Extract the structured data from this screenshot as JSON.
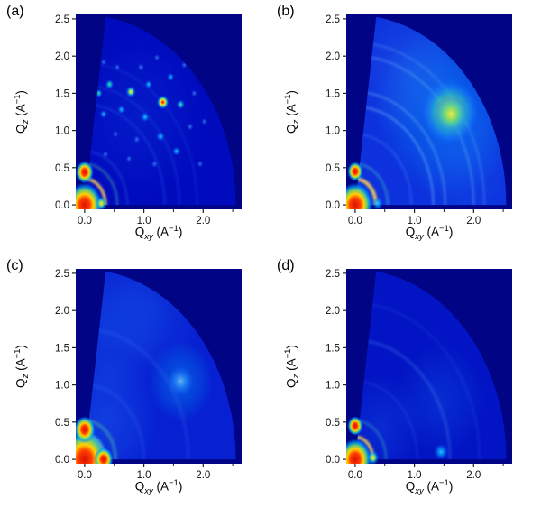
{
  "axes": {
    "q_symbol": "Q",
    "y_sub": "z",
    "x_sub": "xy",
    "unit_open": "(A",
    "unit_sup": "−1",
    "unit_close": ")"
  },
  "chart_data": [
    {
      "type": "heatmap",
      "panel_label": "(a)",
      "description": "GIWAXS quarter-arc detector image: spotty diffraction rings with sharp Bragg spots (crystalline, textured)",
      "colormap": "jet",
      "xlabel": "Qxy (A−1)",
      "ylabel": "Qz (A−1)",
      "xlim": [
        -0.15,
        2.65
      ],
      "ylim": [
        -0.06,
        2.56
      ],
      "xticks": [
        0,
        1,
        2
      ],
      "xtick_labels": [
        "0.0",
        "1.0",
        "2.0"
      ],
      "xminor": [
        0.5,
        1.5,
        2.5
      ],
      "yticks": [
        0,
        0.5,
        1,
        1.5,
        2,
        2.5
      ],
      "ytick_labels": [
        "0.0",
        "0.5",
        "1.0",
        "1.5",
        "2.0",
        "2.5"
      ],
      "background": "#000485",
      "wedge": {
        "radius": 2.55,
        "tilt_deg": 8,
        "color": "#000bbe"
      },
      "glows": [
        {
          "x": 0.9,
          "y": 1.2,
          "r": 1.1,
          "rgb": "30,110,255",
          "a": 0.15
        }
      ],
      "rings": [
        {
          "r": 0.35,
          "color": "#ffd24d",
          "opacity": 0.85,
          "w": 3.5
        },
        {
          "r": 0.55,
          "color": "#59d9a6",
          "opacity": 0.35,
          "w": 3
        },
        {
          "r": 0.72,
          "color": "#3a7bff",
          "opacity": 0.25,
          "w": 2.5
        },
        {
          "r": 1.35,
          "color": "#3a7bff",
          "opacity": 0.22,
          "w": 2.5
        },
        {
          "r": 1.6,
          "color": "#3a7bff",
          "opacity": 0.18,
          "w": 2.5
        },
        {
          "r": 1.9,
          "color": "#3a7bff",
          "opacity": 0.14,
          "w": 2.5
        }
      ],
      "spots": [
        {
          "x": 1.32,
          "y": 1.38,
          "s": 0.1,
          "g": "red"
        },
        {
          "x": 0.78,
          "y": 1.52,
          "s": 0.085,
          "g": "yellow"
        },
        {
          "x": 0.42,
          "y": 1.62,
          "s": 0.07,
          "g": "green"
        },
        {
          "x": 1.02,
          "y": 1.18,
          "s": 0.07,
          "g": "cyan"
        },
        {
          "x": 0.62,
          "y": 1.28,
          "s": 0.06,
          "g": "cyan"
        },
        {
          "x": 1.28,
          "y": 0.92,
          "s": 0.07,
          "g": "cyan"
        },
        {
          "x": 0.88,
          "y": 0.88,
          "s": 0.055,
          "g": "faint"
        },
        {
          "x": 1.55,
          "y": 0.72,
          "s": 0.065,
          "g": "cyan"
        },
        {
          "x": 1.18,
          "y": 0.55,
          "s": 0.055,
          "g": "faint"
        },
        {
          "x": 0.32,
          "y": 1.22,
          "s": 0.06,
          "g": "cyan"
        },
        {
          "x": 0.24,
          "y": 1.5,
          "s": 0.06,
          "g": "green"
        },
        {
          "x": 1.45,
          "y": 1.72,
          "s": 0.06,
          "g": "cyan"
        },
        {
          "x": 0.95,
          "y": 1.85,
          "s": 0.055,
          "g": "faint"
        },
        {
          "x": 1.78,
          "y": 1.05,
          "s": 0.055,
          "g": "faint"
        },
        {
          "x": 1.95,
          "y": 0.55,
          "s": 0.05,
          "g": "faint"
        },
        {
          "x": 0.52,
          "y": 0.95,
          "s": 0.05,
          "g": "faint"
        },
        {
          "x": 0.75,
          "y": 0.62,
          "s": 0.05,
          "g": "faint"
        },
        {
          "x": 0.35,
          "y": 0.68,
          "s": 0.05,
          "g": "faint"
        },
        {
          "x": 1.62,
          "y": 1.35,
          "s": 0.07,
          "g": "green"
        },
        {
          "x": 1.08,
          "y": 1.62,
          "s": 0.06,
          "g": "cyan"
        },
        {
          "x": 2.02,
          "y": 1.12,
          "s": 0.05,
          "g": "faint"
        },
        {
          "x": 0.32,
          "y": 1.92,
          "s": 0.05,
          "g": "faint"
        },
        {
          "x": 1.22,
          "y": 1.98,
          "s": 0.05,
          "g": "faint"
        },
        {
          "x": 1.68,
          "y": 1.88,
          "s": 0.05,
          "g": "faint"
        },
        {
          "x": 0.55,
          "y": 1.85,
          "s": 0.05,
          "g": "faint"
        },
        {
          "x": 1.85,
          "y": 1.5,
          "s": 0.05,
          "g": "faint"
        }
      ],
      "streaks": [],
      "beam": {
        "s": 0.3
      },
      "edge_blobs": [
        {
          "x": 0,
          "y": 0.44,
          "s": 0.15,
          "g": "beam"
        },
        {
          "x": 0.28,
          "y": 0.02,
          "s": 0.1,
          "g": "yellow"
        }
      ]
    },
    {
      "type": "heatmap",
      "panel_label": "(b)",
      "description": "GIWAXS quarter-arc detector image: smooth diffuse rings with broad intense halo centered near (1.6, 1.25)",
      "colormap": "jet",
      "xlabel": "Qxy (A−1)",
      "ylabel": "Qz (A−1)",
      "xlim": [
        -0.15,
        2.65
      ],
      "ylim": [
        -0.06,
        2.56
      ],
      "xticks": [
        0,
        1,
        2
      ],
      "xtick_labels": [
        "0.0",
        "1.0",
        "2.0"
      ],
      "xminor": [
        0.5,
        1.5,
        2.5
      ],
      "yticks": [
        0,
        0.5,
        1,
        1.5,
        2,
        2.5
      ],
      "ytick_labels": [
        "0.0",
        "0.5",
        "1.0",
        "1.5",
        "2.0",
        "2.5"
      ],
      "background": "#000485",
      "wedge": {
        "radius": 2.55,
        "tilt_deg": 8,
        "color": "#0c31dd"
      },
      "glows": [
        {
          "x": 1.55,
          "y": 1.3,
          "r": 1.2,
          "rgb": "0,180,255",
          "a": 0.4
        },
        {
          "x": 0.9,
          "y": 1.8,
          "r": 0.9,
          "rgb": "60,150,255",
          "a": 0.22
        },
        {
          "x": 1.9,
          "y": 0.6,
          "r": 0.9,
          "rgb": "30,130,255",
          "a": 0.2
        }
      ],
      "rings": [
        {
          "r": 0.35,
          "color": "#ffd24d",
          "opacity": 0.9,
          "w": 4
        },
        {
          "r": 0.55,
          "color": "#4fd0c0",
          "opacity": 0.35,
          "w": 3
        },
        {
          "r": 0.95,
          "color": "#5aa0ff",
          "opacity": 0.2,
          "w": 3
        },
        {
          "r": 1.32,
          "color": "#79c4ff",
          "opacity": 0.4,
          "w": 2.5
        },
        {
          "r": 1.52,
          "color": "#79c4ff",
          "opacity": 0.33,
          "w": 2.5
        },
        {
          "r": 2.0,
          "color": "#79c4ff",
          "opacity": 0.3,
          "w": 2.5
        },
        {
          "r": 2.18,
          "color": "#79c4ff",
          "opacity": 0.22,
          "w": 2.5
        }
      ],
      "spots": [
        {
          "x": 1.6,
          "y": 1.25,
          "s": 0.5,
          "g": "blob"
        },
        {
          "x": 1.62,
          "y": 1.22,
          "s": 0.28,
          "g": "blob"
        }
      ],
      "streaks": [],
      "beam": {
        "s": 0.3
      },
      "edge_blobs": [
        {
          "x": 0,
          "y": 0.45,
          "s": 0.13,
          "g": "beam"
        },
        {
          "x": 0.38,
          "y": 0.02,
          "s": 0.09,
          "g": "cyan"
        }
      ]
    },
    {
      "type": "heatmap",
      "panel_label": "(c)",
      "description": "GIWAXS quarter-arc detector image: weak diffuse scattering with soft halo near (1.6, 1.05) and bright beam corner",
      "colormap": "jet",
      "xlabel": "Qxy (A−1)",
      "ylabel": "Qz (A−1)",
      "xlim": [
        -0.15,
        2.65
      ],
      "ylim": [
        -0.06,
        2.56
      ],
      "xticks": [
        0,
        1,
        2
      ],
      "xtick_labels": [
        "0.0",
        "1.0",
        "2.0"
      ],
      "xminor": [
        0.5,
        1.5,
        2.5
      ],
      "yticks": [
        0,
        0.5,
        1,
        1.5,
        2,
        2.5
      ],
      "ytick_labels": [
        "0.0",
        "0.5",
        "1.0",
        "1.5",
        "2.0",
        "2.5"
      ],
      "background": "#000485",
      "wedge": {
        "radius": 2.55,
        "tilt_deg": 8,
        "color": "#0620d2"
      },
      "glows": [
        {
          "x": 0.45,
          "y": 1.8,
          "r": 1.0,
          "rgb": "40,140,255",
          "a": 0.25
        },
        {
          "x": 1.62,
          "y": 1.05,
          "r": 0.55,
          "rgb": "0,190,255",
          "a": 0.35
        },
        {
          "x": 0.35,
          "y": 0.55,
          "r": 0.9,
          "rgb": "40,130,255",
          "a": 0.3
        },
        {
          "x": 1.2,
          "y": 2.0,
          "r": 0.8,
          "rgb": "40,140,255",
          "a": 0.15
        }
      ],
      "rings": [
        {
          "r": 0.32,
          "color": "#ffd24d",
          "opacity": 0.8,
          "w": 4
        },
        {
          "r": 0.52,
          "color": "#59d9a6",
          "opacity": 0.35,
          "w": 4
        },
        {
          "r": 1.0,
          "color": "#4f8fff",
          "opacity": 0.12,
          "w": 4
        },
        {
          "r": 1.75,
          "color": "#4f8fff",
          "opacity": 0.12,
          "w": 5
        }
      ],
      "spots": [
        {
          "x": 1.62,
          "y": 1.05,
          "s": 0.22,
          "g": "soft"
        }
      ],
      "streaks": [],
      "beam": {
        "s": 0.4
      },
      "edge_blobs": [
        {
          "x": 0,
          "y": 0.4,
          "s": 0.18,
          "g": "beam"
        },
        {
          "x": 0.32,
          "y": 0,
          "s": 0.16,
          "g": "beam"
        }
      ]
    },
    {
      "type": "heatmap",
      "panel_label": "(d)",
      "description": "GIWAXS quarter-arc detector image: weak diffuse ring near r=1.6 with sharp vertical streak at Qxy≈1.45 near Qz=0",
      "colormap": "jet",
      "xlabel": "Qxy (A−1)",
      "ylabel": "Qz (A−1)",
      "xlim": [
        -0.15,
        2.65
      ],
      "ylim": [
        -0.06,
        2.56
      ],
      "xticks": [
        0,
        1,
        2
      ],
      "xtick_labels": [
        "0.0",
        "1.0",
        "2.0"
      ],
      "xminor": [
        0.5,
        1.5,
        2.5
      ],
      "yticks": [
        0,
        0.5,
        1,
        1.5,
        2,
        2.5
      ],
      "ytick_labels": [
        "0.0",
        "0.5",
        "1.0",
        "1.5",
        "2.0",
        "2.5"
      ],
      "background": "#000485",
      "wedge": {
        "radius": 2.55,
        "tilt_deg": 8,
        "color": "#0214c4"
      },
      "glows": [
        {
          "x": 1.45,
          "y": 0.8,
          "r": 0.75,
          "rgb": "20,130,255",
          "a": 0.22
        },
        {
          "x": 0.45,
          "y": 0.45,
          "r": 0.7,
          "rgb": "30,120,255",
          "a": 0.22
        }
      ],
      "rings": [
        {
          "r": 0.3,
          "color": "#ffd24d",
          "opacity": 0.85,
          "w": 3.5
        },
        {
          "r": 0.52,
          "color": "#4fd0c0",
          "opacity": 0.3,
          "w": 3
        },
        {
          "r": 1.05,
          "color": "#4f8fff",
          "opacity": 0.12,
          "w": 3
        },
        {
          "r": 1.6,
          "color": "#5a9fff",
          "opacity": 0.22,
          "w": 3.5
        },
        {
          "r": 2.1,
          "color": "#4f8fff",
          "opacity": 0.1,
          "w": 3
        }
      ],
      "spots": [
        {
          "x": 1.45,
          "y": 0.1,
          "s": 0.12,
          "g": "cyan"
        }
      ],
      "streaks": [
        {
          "x": 1.45,
          "y0": 0.0,
          "y1": 0.55,
          "w": 5,
          "color": "#8feaff",
          "opacity": 0.85
        }
      ],
      "beam": {
        "s": 0.28
      },
      "edge_blobs": [
        {
          "x": 0,
          "y": 0.45,
          "s": 0.13,
          "g": "beam"
        },
        {
          "x": 0.3,
          "y": 0.02,
          "s": 0.1,
          "g": "yellow"
        }
      ]
    }
  ]
}
